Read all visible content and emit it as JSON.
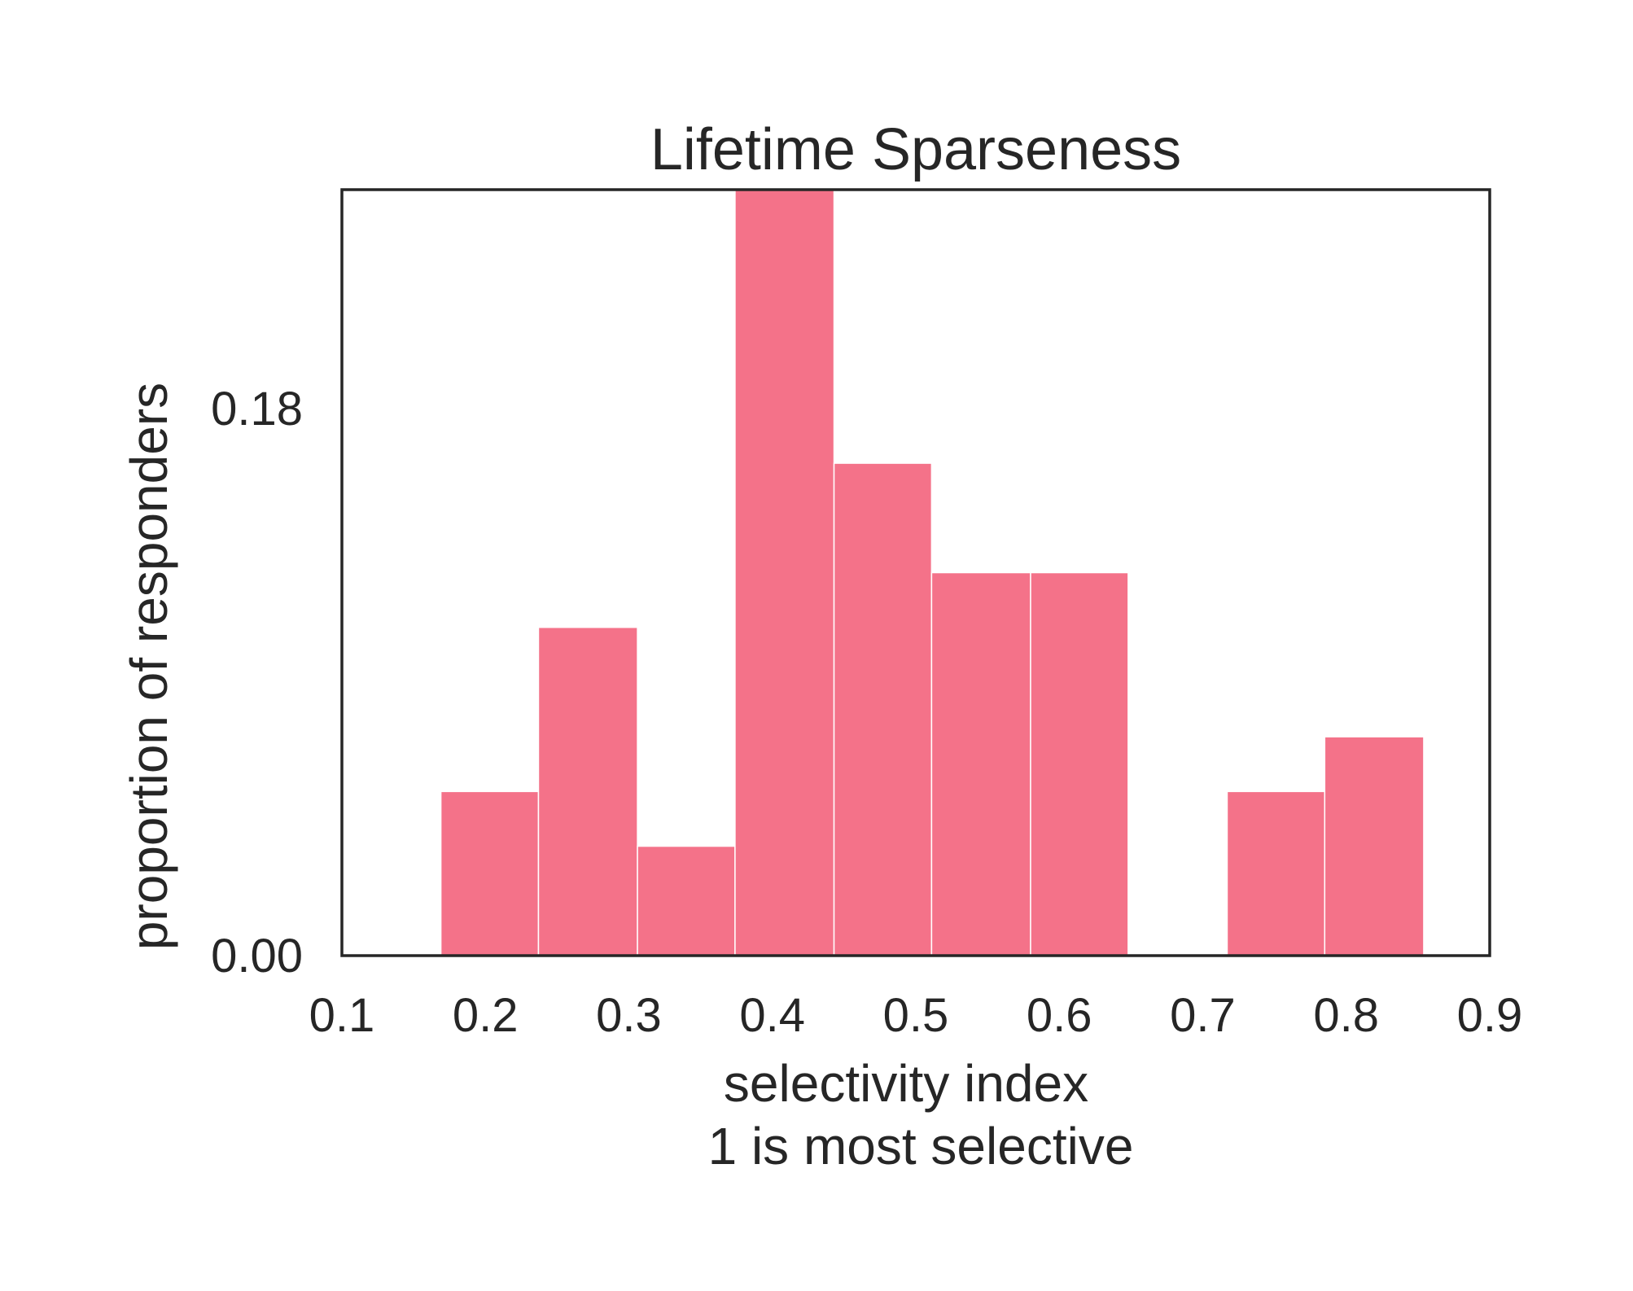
{
  "chart_data": {
    "type": "bar",
    "title": "Lifetime Sparseness",
    "xlabel": "selectivity index",
    "xlabel_line2": "1 is most selective",
    "ylabel": "proportion of responders",
    "xlim": [
      0.1,
      0.9
    ],
    "ylim": [
      0.0,
      0.252
    ],
    "xticks": [
      "0.1",
      "0.2",
      "0.3",
      "0.4",
      "0.5",
      "0.6",
      "0.7",
      "0.8",
      "0.9"
    ],
    "yticks": [
      "0.00",
      "0.18"
    ],
    "bar_color": "#f47289",
    "bar_edge_color": "#ffffff",
    "grid": false,
    "bins": [
      {
        "left": 0.1,
        "right": 0.169,
        "value": 0.0
      },
      {
        "left": 0.169,
        "right": 0.237,
        "value": 0.054
      },
      {
        "left": 0.237,
        "right": 0.306,
        "value": 0.108
      },
      {
        "left": 0.306,
        "right": 0.374,
        "value": 0.036
      },
      {
        "left": 0.374,
        "right": 0.443,
        "value": 0.252
      },
      {
        "left": 0.443,
        "right": 0.511,
        "value": 0.162
      },
      {
        "left": 0.511,
        "right": 0.58,
        "value": 0.126
      },
      {
        "left": 0.58,
        "right": 0.648,
        "value": 0.126
      },
      {
        "left": 0.648,
        "right": 0.717,
        "value": 0.0
      },
      {
        "left": 0.717,
        "right": 0.785,
        "value": 0.054
      },
      {
        "left": 0.785,
        "right": 0.854,
        "value": 0.072
      }
    ]
  }
}
